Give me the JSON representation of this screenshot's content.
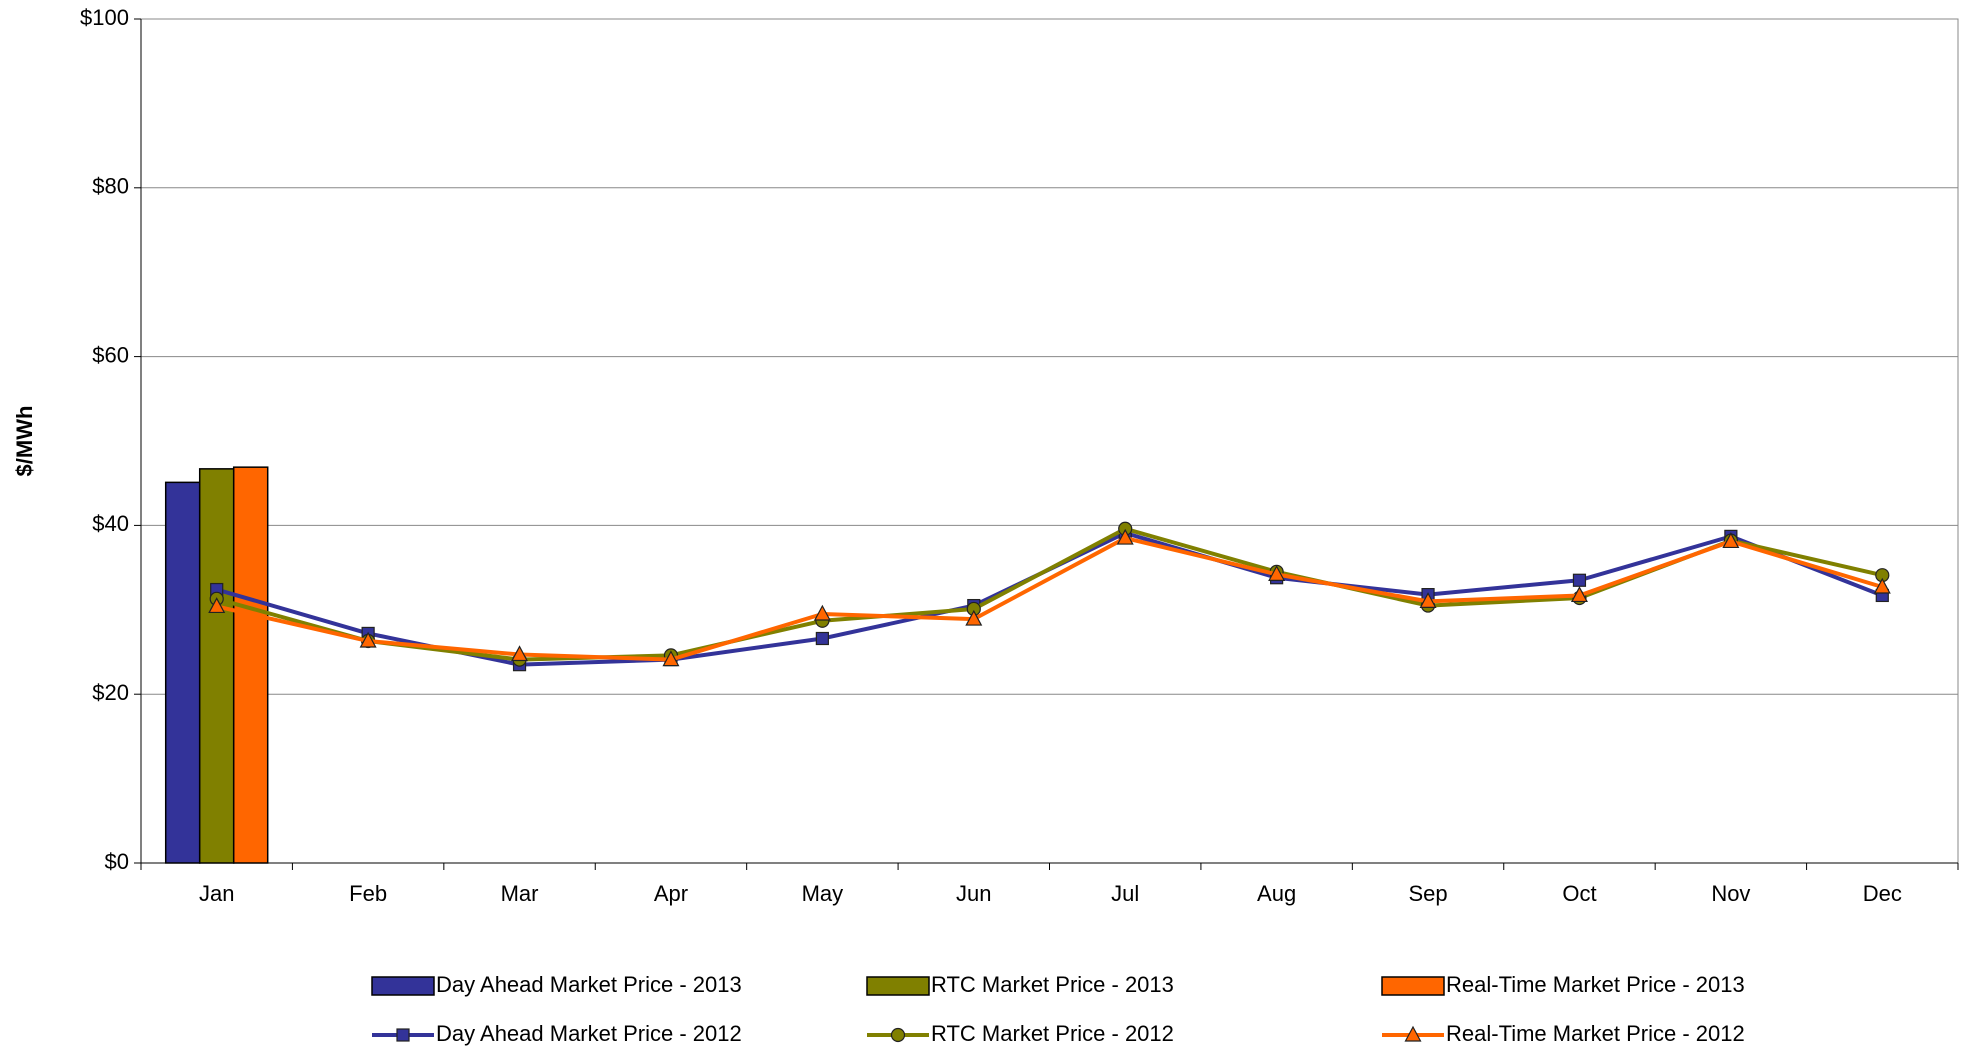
{
  "chart_data": {
    "type": "combo",
    "y_label": "$/MWh",
    "categories": [
      "Jan",
      "Feb",
      "Mar",
      "Apr",
      "May",
      "Jun",
      "Jul",
      "Aug",
      "Sep",
      "Oct",
      "Nov",
      "Dec"
    ],
    "ylim": [
      0,
      100
    ],
    "yticks": [
      {
        "value": 0,
        "label": "$0"
      },
      {
        "value": 20,
        "label": "$20"
      },
      {
        "value": 40,
        "label": "$40"
      },
      {
        "value": 60,
        "label": "$60"
      },
      {
        "value": 80,
        "label": "$80"
      },
      {
        "value": 100,
        "label": "$100"
      }
    ],
    "grid": true,
    "series": [
      {
        "name": "Day Ahead Market Price - 2013",
        "type": "bar",
        "color": "#333399",
        "values": [
          45.1,
          null,
          null,
          null,
          null,
          null,
          null,
          null,
          null,
          null,
          null,
          null
        ]
      },
      {
        "name": "RTC Market Price - 2013",
        "type": "bar",
        "color": "#808000",
        "values": [
          46.7,
          null,
          null,
          null,
          null,
          null,
          null,
          null,
          null,
          null,
          null,
          null
        ]
      },
      {
        "name": "Real-Time Market Price - 2013",
        "type": "bar",
        "color": "#ff6600",
        "values": [
          46.9,
          null,
          null,
          null,
          null,
          null,
          null,
          null,
          null,
          null,
          null,
          null
        ]
      },
      {
        "name": "Day Ahead Market Price - 2012",
        "type": "line",
        "marker": "square",
        "color": "#333399",
        "values": [
          32.4,
          27.2,
          23.5,
          24.1,
          26.6,
          30.5,
          39.1,
          33.8,
          31.8,
          33.5,
          38.7,
          31.7
        ]
      },
      {
        "name": "RTC Market Price - 2012",
        "type": "line",
        "marker": "circle",
        "color": "#808000",
        "values": [
          31.3,
          26.3,
          24.1,
          24.6,
          28.7,
          30.1,
          39.6,
          34.5,
          30.5,
          31.4,
          38.2,
          34.1
        ]
      },
      {
        "name": "Real-Time Market Price - 2012",
        "type": "line",
        "marker": "triangle",
        "color": "#ff6600",
        "values": [
          30.4,
          26.3,
          24.7,
          24.1,
          29.5,
          28.9,
          38.5,
          34.2,
          31.0,
          31.7,
          38.1,
          32.7
        ]
      }
    ]
  }
}
